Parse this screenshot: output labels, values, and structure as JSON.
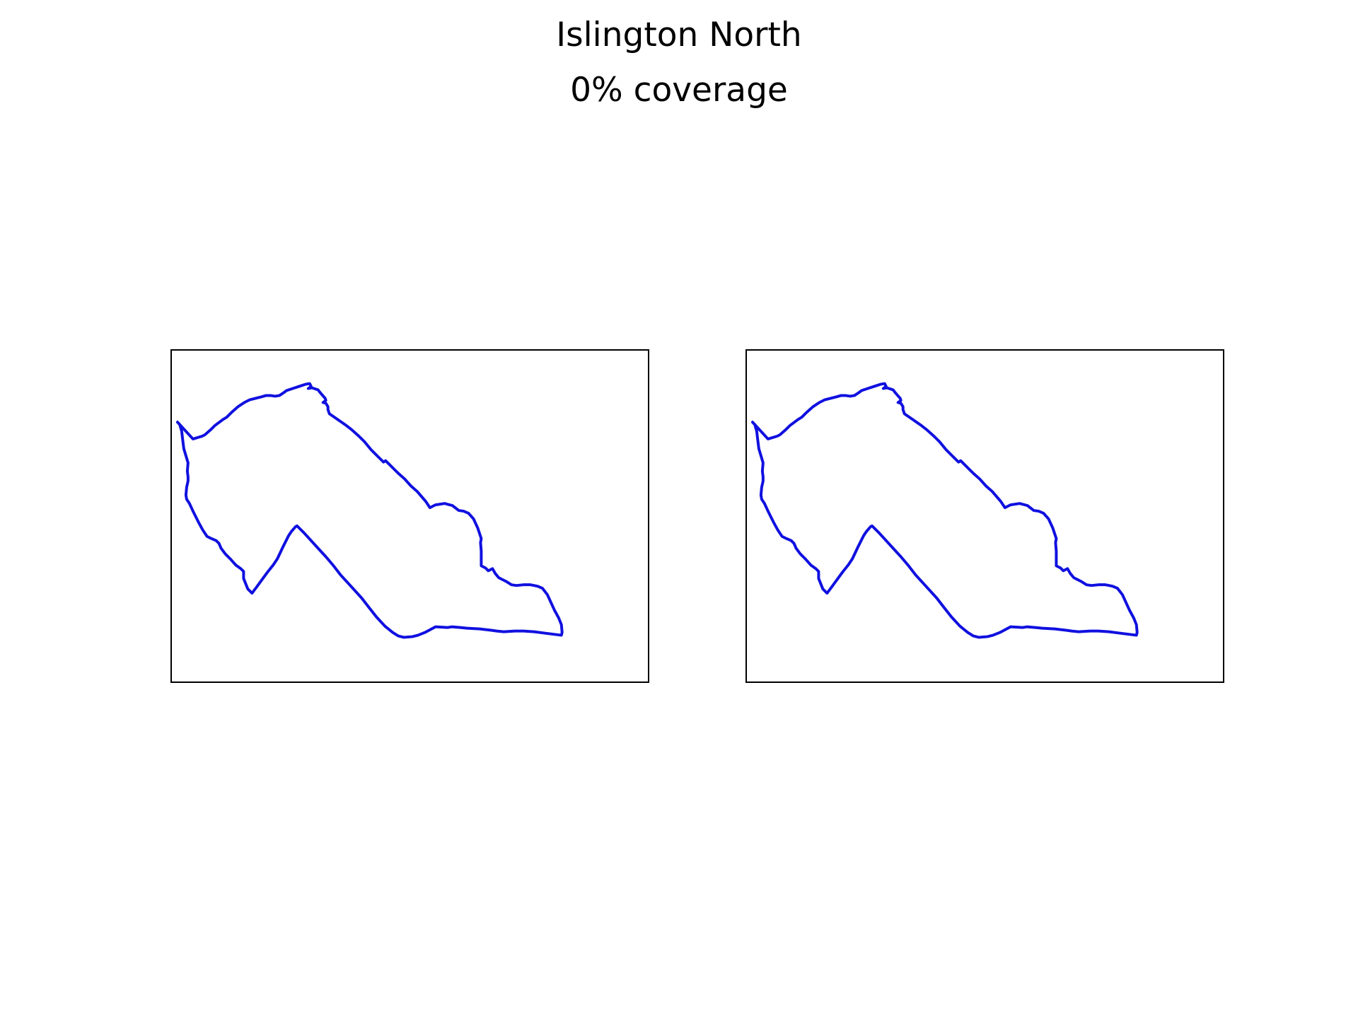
{
  "title": {
    "name": "Islington North",
    "coverage": "0% coverage"
  },
  "style": {
    "outline_color": "#1010e0",
    "frame_color": "#000000"
  },
  "panels": [
    {
      "id": "left",
      "content": "constituency-boundary-outline"
    },
    {
      "id": "right",
      "content": "constituency-boundary-outline"
    }
  ]
}
